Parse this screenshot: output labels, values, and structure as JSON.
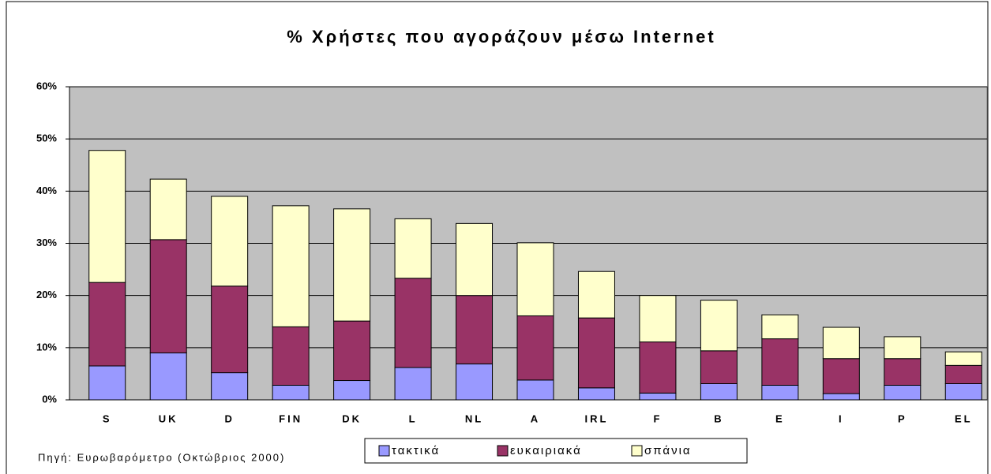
{
  "chart_data": {
    "type": "stacked_bar",
    "title": "% Χρήστες που αγοράζουν μέσω Internet",
    "source": "Πηγή: Ευρωβαρόμετρο (Οκτώβριος 2000)",
    "categories": [
      "S",
      "UK",
      "D",
      "FIN",
      "DK",
      "L",
      "NL",
      "A",
      "IRL",
      "F",
      "B",
      "E",
      "I",
      "P",
      "EL"
    ],
    "series": [
      {
        "name": "τακτικά",
        "color": "#9999ff",
        "values": [
          6.5,
          9,
          5.2,
          2.8,
          3.7,
          6.2,
          6.9,
          3.8,
          2.3,
          1.3,
          3.1,
          2.8,
          1.2,
          2.8,
          3.1
        ]
      },
      {
        "name": "ευκαιριακά",
        "color": "#993366",
        "values": [
          16,
          21.7,
          16.6,
          11.2,
          11.4,
          17.1,
          13.1,
          12.3,
          13.4,
          9.8,
          6.3,
          8.9,
          6.7,
          5.1,
          3.5
        ]
      },
      {
        "name": "σπάνια",
        "color": "#ffffcc",
        "values": [
          25.3,
          11.6,
          17.2,
          23.2,
          21.5,
          11.4,
          13.8,
          14,
          8.9,
          8.9,
          9.7,
          4.6,
          6,
          4.2,
          2.6
        ]
      }
    ],
    "ylim": [
      0,
      60
    ],
    "yticks": [
      {
        "value": 0,
        "label": "0%"
      },
      {
        "value": 10,
        "label": "10%"
      },
      {
        "value": 20,
        "label": "20%"
      },
      {
        "value": 30,
        "label": "30%"
      },
      {
        "value": 40,
        "label": "40%"
      },
      {
        "value": 50,
        "label": "50%"
      },
      {
        "value": 60,
        "label": "60%"
      }
    ],
    "grid": true
  }
}
